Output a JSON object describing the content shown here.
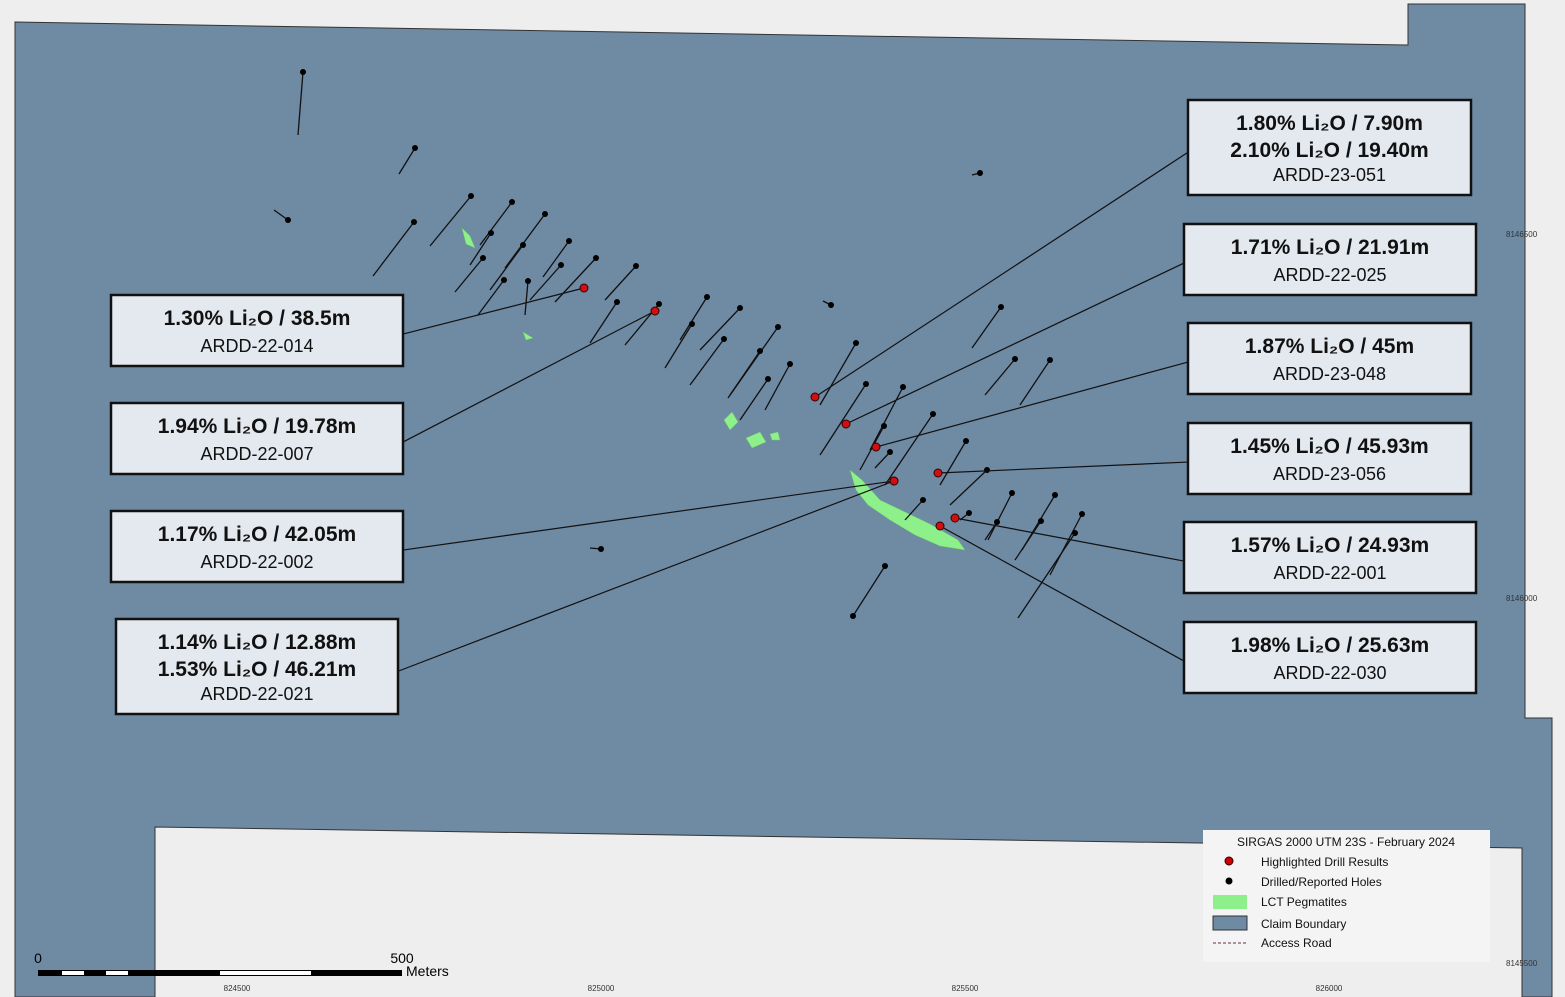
{
  "map": {
    "callouts": [
      {
        "lines": [
          "1.80% Li₂O / 7.90m",
          "2.10% Li₂O / 19.40m"
        ],
        "hole": "ARDD-23-051"
      },
      {
        "lines": [
          "1.71% Li₂O / 21.91m"
        ],
        "hole": "ARDD-22-025"
      },
      {
        "lines": [
          "1.87% Li₂O / 45m"
        ],
        "hole": "ARDD-23-048"
      },
      {
        "lines": [
          "1.45% Li₂O / 45.93m"
        ],
        "hole": "ARDD-23-056"
      },
      {
        "lines": [
          "1.57% Li₂O / 24.93m"
        ],
        "hole": "ARDD-22-001"
      },
      {
        "lines": [
          "1.98% Li₂O / 25.63m"
        ],
        "hole": "ARDD-22-030"
      },
      {
        "lines": [
          "1.30% Li₂O / 38.5m"
        ],
        "hole": "ARDD-22-014"
      },
      {
        "lines": [
          "1.94% Li₂O / 19.78m"
        ],
        "hole": "ARDD-22-007"
      },
      {
        "lines": [
          "1.17% Li₂O / 42.05m"
        ],
        "hole": "ARDD-22-002"
      },
      {
        "lines": [
          "1.14% Li₂O / 12.88m",
          "1.53% Li₂O / 46.21m"
        ],
        "hole": "ARDD-22-021"
      }
    ],
    "legend": {
      "title": "SIRGAS 2000 UTM 23S - February 2024",
      "items": [
        "Highlighted Drill Results",
        "Drilled/Reported Holes",
        "LCT Pegmatites",
        "Claim Boundary",
        "Access Road"
      ]
    },
    "scale": {
      "start": "0",
      "end": "500",
      "unit": "Meters"
    },
    "eastings": [
      "824500",
      "825000",
      "825500",
      "826000"
    ],
    "northings": [
      "8146500",
      "8146000",
      "8145500"
    ]
  }
}
